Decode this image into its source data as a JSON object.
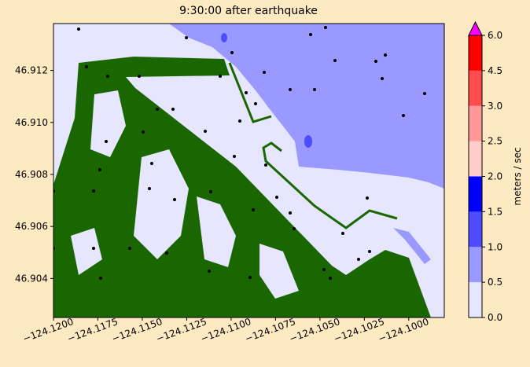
{
  "chart_data": {
    "type": "map",
    "title": "9:30:00 after earthquake",
    "xlim": [
      -124.12,
      -124.098
    ],
    "ylim": [
      46.9025,
      46.9138
    ],
    "xticks": [
      {
        "value": -124.12,
        "label": "−124.1200"
      },
      {
        "value": -124.1175,
        "label": "−124.1175"
      },
      {
        "value": -124.115,
        "label": "−124.1150"
      },
      {
        "value": -124.1125,
        "label": "−124.1125"
      },
      {
        "value": -124.11,
        "label": "−124.1100"
      },
      {
        "value": -124.1075,
        "label": "−124.1075"
      },
      {
        "value": -124.105,
        "label": "−124.1050"
      },
      {
        "value": -124.1025,
        "label": "−124.1025"
      },
      {
        "value": -124.1,
        "label": "−124.1000"
      }
    ],
    "yticks": [
      46.904,
      46.906,
      46.908,
      {
        "value": 46.91,
        "label": "46.910"
      },
      46.912
    ],
    "colorbar": {
      "label": "meters / sec",
      "levels": [
        0,
        0.5,
        1,
        1.5,
        2,
        2.5,
        3,
        4.5,
        6
      ],
      "colors": [
        "#e6e6ff",
        "#9999ff",
        "#4d4dff",
        "#0000ff",
        "#ffcccc",
        "#ff9999",
        "#ff4d4d",
        "#ff0000"
      ],
      "over_color": "#ff00ff",
      "ticks": [
        {
          "value": 0,
          "label": "0.0"
        },
        {
          "value": 0.5,
          "label": "0.5"
        },
        {
          "value": 1,
          "label": "1.0"
        },
        {
          "value": 1.5,
          "label": "1.5"
        },
        {
          "value": 2,
          "label": "2.0"
        },
        {
          "value": 2.5,
          "label": "2.5"
        },
        {
          "value": 3,
          "label": "3.0"
        },
        {
          "value": 4.5,
          "label": "4.5"
        },
        {
          "value": 6,
          "label": "6.0"
        }
      ]
    }
  }
}
